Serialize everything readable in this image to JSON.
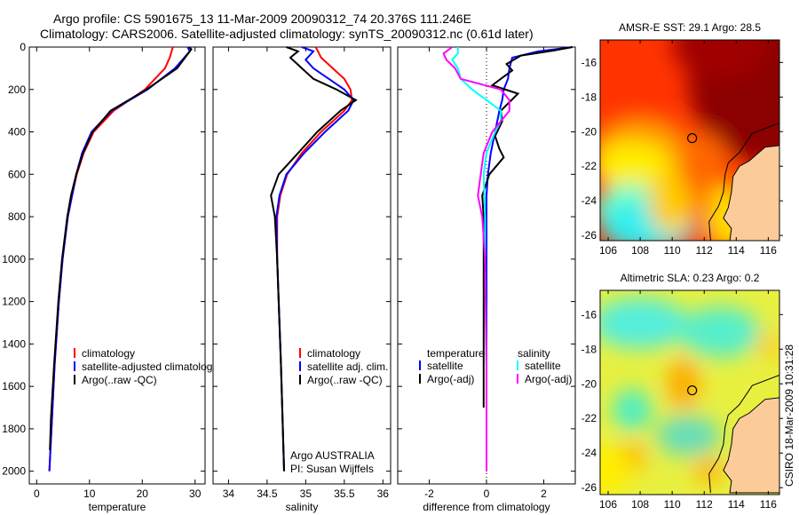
{
  "title_line1": "Argo profile: CS 5901675_13 11-Mar-2009 20090312_74 20.376S 111.246E",
  "title_line2": "Climatology: CARS2006. Satellite-adjusted climatology: synTS_20090312.nc (0.61d later)",
  "stamp": "CSIRO 18-Mar-2009 10:31:28",
  "colors": {
    "red": "#ff0000",
    "blue": "#0000ff",
    "black": "#000000",
    "cyan": "#00ffff",
    "magenta": "#ff00ff",
    "land": "#fccb9a"
  },
  "chart_data": [
    {
      "type": "line",
      "id": "temperature",
      "xlabel": "temperature",
      "ylabel": "",
      "xlim": [
        -1.4,
        31.9
      ],
      "ylim": [
        2060,
        0
      ],
      "xticks": [
        0,
        10,
        20,
        30
      ],
      "yticks": [
        0,
        200,
        400,
        600,
        800,
        1000,
        1200,
        1400,
        1600,
        1800,
        2000
      ],
      "legend": [
        "climatology",
        "satellite-adjusted climatology",
        "Argo(..raw -QC)"
      ],
      "series": [
        {
          "name": "climatology",
          "color": "#ff0000",
          "depth": [
            0,
            50,
            100,
            200,
            300,
            400,
            500,
            600,
            700,
            800,
            1000,
            1200,
            1500,
            1800,
            2000
          ],
          "values": [
            25.8,
            25.2,
            24.3,
            20.5,
            14.6,
            10.8,
            8.9,
            7.6,
            6.7,
            5.9,
            4.9,
            4.2,
            3.4,
            2.8,
            2.4
          ]
        },
        {
          "name": "satellite-adjusted climatology",
          "color": "#0000ff",
          "depth": [
            0,
            20,
            100,
            200,
            300,
            400,
            500,
            600,
            700,
            800,
            1000,
            1200,
            1500,
            1800,
            2000
          ],
          "values": [
            28.6,
            29.0,
            26.2,
            21.0,
            14.2,
            10.4,
            8.6,
            7.5,
            6.7,
            5.9,
            4.9,
            4.2,
            3.4,
            2.8,
            2.4
          ]
        },
        {
          "name": "Argo(..raw -QC)",
          "color": "#000000",
          "depth": [
            0,
            10,
            100,
            200,
            300,
            400,
            500,
            600,
            700,
            800,
            1000,
            1200,
            1500,
            1750,
            1900
          ],
          "values": [
            28.9,
            29.3,
            26.6,
            20.8,
            14.0,
            10.6,
            8.8,
            7.5,
            6.5,
            5.8,
            4.8,
            4.1,
            3.3,
            2.7,
            2.5
          ]
        }
      ]
    },
    {
      "type": "line",
      "id": "salinity",
      "xlabel": "salinity",
      "xlim": [
        33.8,
        36.1
      ],
      "ylim": [
        2060,
        0
      ],
      "xticks": [
        34,
        34.5,
        35,
        35.5,
        36
      ],
      "yticks": [
        0,
        200,
        400,
        600,
        800,
        1000,
        1200,
        1400,
        1600,
        1800,
        2000
      ],
      "legend": [
        "climatology",
        "satellite adj. clim.",
        "Argo(..raw -QC)"
      ],
      "series": [
        {
          "name": "climatology",
          "color": "#ff0000",
          "depth": [
            0,
            50,
            100,
            150,
            200,
            250,
            300,
            400,
            500,
            600,
            700,
            800,
            1000,
            1500,
            2000
          ],
          "values": [
            35.13,
            35.2,
            35.35,
            35.5,
            35.58,
            35.6,
            35.5,
            35.2,
            34.95,
            34.76,
            34.67,
            34.63,
            34.63,
            34.68,
            34.72
          ]
        },
        {
          "name": "satellite adj. clim.",
          "color": "#0000ff",
          "depth": [
            0,
            20,
            60,
            100,
            150,
            200,
            250,
            300,
            400,
            500,
            600,
            700,
            800,
            1000,
            1500,
            2000
          ],
          "values": [
            34.95,
            35.1,
            35.0,
            35.1,
            35.3,
            35.5,
            35.62,
            35.55,
            35.25,
            34.98,
            34.75,
            34.66,
            34.62,
            34.63,
            34.68,
            34.72
          ]
        },
        {
          "name": "Argo(..raw -QC)",
          "color": "#000000",
          "depth": [
            0,
            20,
            50,
            100,
            150,
            200,
            250,
            300,
            400,
            500,
            600,
            700,
            800,
            1000,
            1500,
            2000
          ],
          "values": [
            34.75,
            34.9,
            34.8,
            34.95,
            35.1,
            35.4,
            35.65,
            35.45,
            35.15,
            34.9,
            34.65,
            34.55,
            34.6,
            34.63,
            34.68,
            34.72
          ]
        }
      ],
      "annotation": [
        "Argo AUSTRALIA",
        "PI: Susan Wijffels"
      ]
    },
    {
      "type": "line",
      "id": "difference",
      "xlabel": "difference from climatology",
      "xlim": [
        -3.1,
        3.1
      ],
      "ylim": [
        2060,
        0
      ],
      "xticks": [
        -2,
        0,
        2
      ],
      "yticks": [
        0,
        200,
        400,
        600,
        800,
        1000,
        1200,
        1400,
        1600,
        1800,
        2000
      ],
      "legend_headers": [
        "temperature",
        "salinity"
      ],
      "legend": [
        "satellite",
        "Argo(-adj)",
        "satellite",
        "Argo(-adj)"
      ],
      "series": [
        {
          "name": "temperature satellite",
          "color": "#0000ff",
          "depth": [
            0,
            20,
            50,
            100,
            150,
            200,
            250,
            300,
            400,
            500,
            600,
            700,
            1000,
            1500,
            2000
          ],
          "values": [
            3.0,
            1.8,
            0.9,
            0.8,
            0.75,
            0.6,
            0.55,
            0.45,
            0.3,
            0.15,
            0.05,
            0.0,
            0.0,
            0.0,
            0.0
          ]
        },
        {
          "name": "temperature Argo(-adj)",
          "color": "#000000",
          "depth": [
            0,
            15,
            40,
            80,
            110,
            150,
            180,
            220,
            260,
            300,
            350,
            420,
            480,
            520,
            600,
            700,
            800,
            1000,
            1400,
            1700
          ],
          "values": [
            3.0,
            2.4,
            1.2,
            0.7,
            0.9,
            0.5,
            0.2,
            1.1,
            0.8,
            0.5,
            0.55,
            0.3,
            0.45,
            0.6,
            0.1,
            -0.15,
            -0.1,
            -0.1,
            -0.1,
            -0.1
          ]
        },
        {
          "name": "salinity satellite",
          "color": "#00ffff",
          "depth": [
            0,
            30,
            60,
            100,
            150,
            200,
            250,
            300,
            350,
            400,
            500,
            600,
            800,
            1000,
            1500,
            2000
          ],
          "values": [
            -1.0,
            -1.0,
            -1.2,
            -1.0,
            -0.9,
            -0.5,
            0.0,
            0.5,
            0.5,
            0.3,
            0.0,
            -0.1,
            -0.05,
            -0.05,
            0.0,
            0.0
          ]
        },
        {
          "name": "salinity Argo(-adj)",
          "color": "#ff00ff",
          "depth": [
            0,
            30,
            60,
            100,
            150,
            200,
            250,
            300,
            350,
            400,
            500,
            600,
            700,
            800,
            1000,
            1500,
            2000
          ],
          "values": [
            -1.2,
            -1.5,
            -1.4,
            -1.1,
            -0.9,
            0.5,
            0.8,
            0.8,
            0.5,
            0.2,
            -0.1,
            -0.2,
            -0.3,
            -0.15,
            -0.05,
            0.0,
            0.0
          ]
        }
      ]
    },
    {
      "type": "heatmap",
      "id": "sst-map",
      "title": "AMSR-E SST: 29.1 Argo: 28.5",
      "xlim": [
        105.5,
        116.7
      ],
      "ylim": [
        -14.7,
        -26.3
      ],
      "xticks": [
        106,
        108,
        110,
        112,
        114,
        116
      ],
      "yticks": [
        -16,
        -18,
        -20,
        -22,
        -24,
        -26
      ],
      "marker": {
        "lon": 111.246,
        "lat": -20.376
      }
    },
    {
      "type": "heatmap",
      "id": "sla-map",
      "title": "Altimetric SLA: 0.23 Argo: 0.2",
      "xlim": [
        105.5,
        116.7
      ],
      "ylim": [
        -14.6,
        -26.4
      ],
      "xticks": [
        106,
        108,
        110,
        112,
        114,
        116
      ],
      "yticks": [
        -16,
        -18,
        -20,
        -22,
        -24,
        -26
      ],
      "marker": {
        "lon": 111.246,
        "lat": -20.376
      }
    }
  ]
}
